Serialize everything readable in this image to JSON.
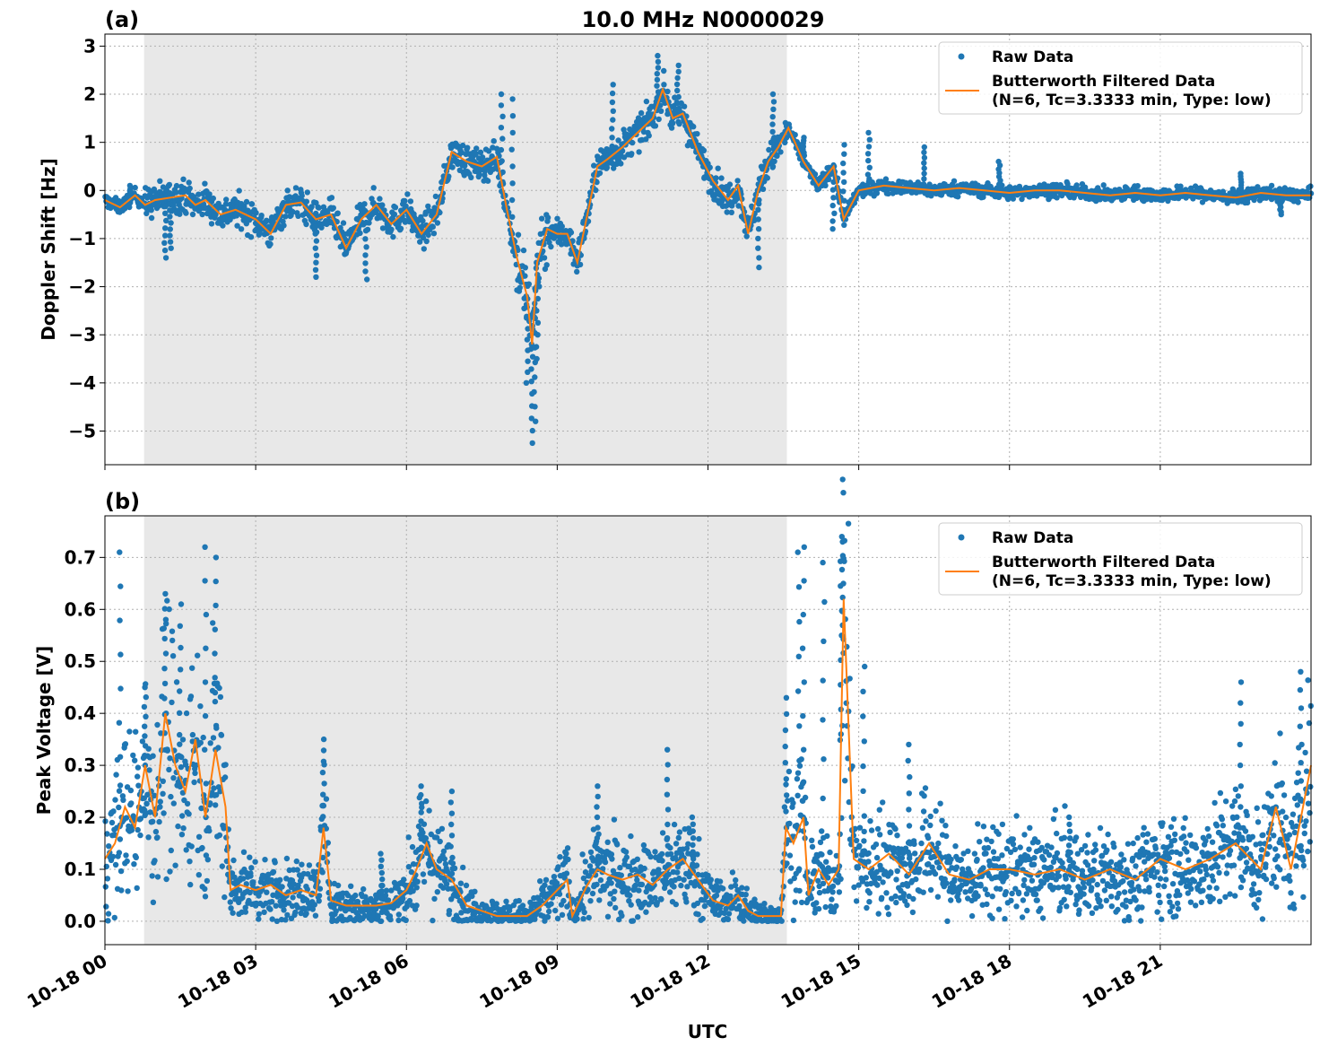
{
  "figure": {
    "title": "10.0 MHz N0000029",
    "xlabel": "UTC",
    "x_tick_labels": [
      "10-18 00",
      "10-18 03",
      "10-18 06",
      "10-18 09",
      "10-18 12",
      "10-18 15",
      "10-18 18",
      "10-18 21"
    ],
    "x_ticks_hours": [
      0,
      3,
      6,
      9,
      12,
      15,
      18,
      21
    ],
    "x_range_hours": [
      0,
      24
    ],
    "shaded_interval_hours": [
      0.78,
      13.57
    ],
    "colors": {
      "raw": "#1f77b4",
      "filtered": "#ff7f0e",
      "shade": "#e8e8e8",
      "grid": "#b0b0b0"
    }
  },
  "legend": {
    "raw_label": "Raw Data",
    "filtered_label_line1": "Butterworth Filtered Data",
    "filtered_label_line2": "(N=6, Tc=3.3333 min, Type: low)"
  },
  "chart_data": [
    {
      "panel": "(a)",
      "type": "scatter",
      "title": "10.0 MHz N0000029",
      "xlabel": "",
      "ylabel": "Doppler Shift [Hz]",
      "ylim": [
        -5.7,
        3.25
      ],
      "y_ticks": [
        3,
        2,
        1,
        0,
        -1,
        -2,
        -3,
        -4,
        -5
      ],
      "y_tick_labels": [
        "3",
        "2",
        "1",
        "0",
        "−1",
        "−2",
        "−3",
        "−4",
        "−5"
      ],
      "grid": true,
      "legend_position": "top-right",
      "series": [
        {
          "name": "Butterworth Filtered Data",
          "kind": "line",
          "x": [
            0,
            0.3,
            0.6,
            0.8,
            1.0,
            1.3,
            1.6,
            1.8,
            2.0,
            2.3,
            2.6,
            3.0,
            3.3,
            3.6,
            3.9,
            4.2,
            4.5,
            4.8,
            5.1,
            5.4,
            5.7,
            6.0,
            6.3,
            6.6,
            6.9,
            7.2,
            7.5,
            7.8,
            8.0,
            8.2,
            8.4,
            8.5,
            8.6,
            8.8,
            9.0,
            9.2,
            9.4,
            9.6,
            9.8,
            10.0,
            10.3,
            10.6,
            10.9,
            11.1,
            11.3,
            11.5,
            11.8,
            12.1,
            12.4,
            12.6,
            12.8,
            13.0,
            13.2,
            13.4,
            13.6,
            13.9,
            14.2,
            14.5,
            14.7,
            15.0,
            15.5,
            16.0,
            16.5,
            17.0,
            17.5,
            18.0,
            18.5,
            19.0,
            19.5,
            20.0,
            20.5,
            21.0,
            21.5,
            22.0,
            22.5,
            23.0,
            23.5,
            24.0
          ],
          "y": [
            -0.2,
            -0.35,
            -0.1,
            -0.3,
            -0.2,
            -0.15,
            -0.1,
            -0.3,
            -0.2,
            -0.5,
            -0.4,
            -0.6,
            -0.9,
            -0.3,
            -0.25,
            -0.6,
            -0.5,
            -1.2,
            -0.6,
            -0.3,
            -0.7,
            -0.4,
            -0.9,
            -0.5,
            0.8,
            0.6,
            0.5,
            0.7,
            -0.4,
            -1.4,
            -2.2,
            -3.2,
            -1.5,
            -0.8,
            -0.9,
            -0.9,
            -1.5,
            -0.5,
            0.5,
            0.65,
            0.9,
            1.2,
            1.5,
            2.1,
            1.5,
            1.6,
            0.8,
            0.2,
            -0.2,
            0.1,
            -0.9,
            0.0,
            0.6,
            0.9,
            1.3,
            0.6,
            0.1,
            0.5,
            -0.6,
            0.0,
            0.1,
            0.05,
            0.0,
            0.05,
            0.0,
            -0.05,
            0.0,
            0.0,
            -0.05,
            -0.1,
            -0.05,
            -0.1,
            -0.05,
            -0.1,
            -0.15,
            -0.05,
            -0.1,
            -0.1
          ]
        },
        {
          "name": "Raw Data",
          "kind": "scatter",
          "spread_note": "raw points scatter around the filtered curve",
          "x": [
            0.5,
            1.2,
            1.3,
            4.2,
            5.2,
            8.4,
            8.5,
            8.55,
            8.6,
            7.9,
            8.1,
            10.1,
            11.0,
            11.4,
            13.0,
            13.3,
            13.9,
            14.5,
            14.7,
            15.2,
            16.3,
            17.8,
            22.6,
            23.4
          ],
          "y": [
            0.1,
            -1.4,
            -1.2,
            -1.8,
            -1.85,
            -4.0,
            -5.25,
            -4.8,
            -3.5,
            2.0,
            1.9,
            2.2,
            2.8,
            2.6,
            -1.6,
            2.0,
            1.1,
            -0.8,
            0.95,
            1.2,
            0.9,
            0.6,
            0.35,
            -0.5
          ]
        }
      ]
    },
    {
      "panel": "(b)",
      "type": "scatter",
      "title": "",
      "xlabel": "UTC",
      "ylabel": "Peak Voltage [V]",
      "ylim": [
        -0.045,
        0.78
      ],
      "y_ticks": [
        0.0,
        0.1,
        0.2,
        0.3,
        0.4,
        0.5,
        0.6,
        0.7
      ],
      "y_tick_labels": [
        "0.0",
        "0.1",
        "0.2",
        "0.3",
        "0.4",
        "0.5",
        "0.6",
        "0.7"
      ],
      "grid": true,
      "legend_position": "top-right",
      "series": [
        {
          "name": "Butterworth Filtered Data",
          "kind": "line",
          "x": [
            0,
            0.2,
            0.4,
            0.6,
            0.8,
            1.0,
            1.2,
            1.4,
            1.6,
            1.8,
            2.0,
            2.2,
            2.4,
            2.5,
            2.7,
            3.0,
            3.3,
            3.6,
            3.9,
            4.2,
            4.35,
            4.5,
            4.8,
            5.1,
            5.4,
            5.7,
            6.0,
            6.2,
            6.4,
            6.6,
            6.9,
            7.2,
            7.5,
            7.8,
            8.1,
            8.4,
            8.7,
            9.0,
            9.2,
            9.3,
            9.6,
            9.8,
            10.0,
            10.3,
            10.6,
            10.9,
            11.2,
            11.5,
            11.8,
            12.1,
            12.4,
            12.6,
            12.8,
            13.0,
            13.2,
            13.45,
            13.55,
            13.7,
            13.9,
            14.0,
            14.2,
            14.4,
            14.6,
            14.7,
            14.9,
            15.2,
            15.6,
            16.0,
            16.4,
            16.8,
            17.2,
            17.6,
            18.0,
            18.5,
            19.0,
            19.5,
            20.0,
            20.5,
            21.0,
            21.5,
            22.0,
            22.5,
            23.0,
            23.3,
            23.6,
            24.0
          ],
          "y": [
            0.12,
            0.15,
            0.22,
            0.18,
            0.3,
            0.2,
            0.4,
            0.3,
            0.25,
            0.35,
            0.2,
            0.33,
            0.22,
            0.06,
            0.07,
            0.06,
            0.07,
            0.05,
            0.06,
            0.05,
            0.18,
            0.04,
            0.03,
            0.03,
            0.03,
            0.035,
            0.06,
            0.1,
            0.15,
            0.1,
            0.08,
            0.03,
            0.02,
            0.01,
            0.01,
            0.01,
            0.03,
            0.06,
            0.08,
            0.01,
            0.07,
            0.1,
            0.09,
            0.08,
            0.09,
            0.07,
            0.1,
            0.12,
            0.08,
            0.04,
            0.03,
            0.05,
            0.02,
            0.01,
            0.01,
            0.01,
            0.18,
            0.15,
            0.2,
            0.05,
            0.1,
            0.07,
            0.1,
            0.62,
            0.12,
            0.1,
            0.13,
            0.09,
            0.15,
            0.09,
            0.08,
            0.1,
            0.1,
            0.09,
            0.1,
            0.08,
            0.1,
            0.08,
            0.12,
            0.1,
            0.12,
            0.15,
            0.1,
            0.22,
            0.1,
            0.3
          ]
        },
        {
          "name": "Raw Data",
          "kind": "scatter",
          "spread_note": "raw points scatter around the filtered curve",
          "x": [
            0.3,
            0.8,
            1.2,
            1.5,
            2.0,
            2.2,
            4.35,
            5.5,
            6.3,
            6.9,
            9.8,
            11.2,
            11.7,
            13.55,
            13.8,
            13.9,
            14.3,
            14.65,
            14.68,
            15.1,
            16.0,
            19.2,
            22.6,
            23.8
          ],
          "y": [
            0.71,
            0.45,
            0.63,
            0.61,
            0.72,
            0.7,
            0.35,
            0.13,
            0.26,
            0.25,
            0.26,
            0.33,
            0.2,
            0.43,
            0.71,
            0.72,
            0.69,
            0.74,
            0.73,
            0.49,
            0.34,
            0.2,
            0.46,
            0.48
          ]
        }
      ]
    }
  ]
}
